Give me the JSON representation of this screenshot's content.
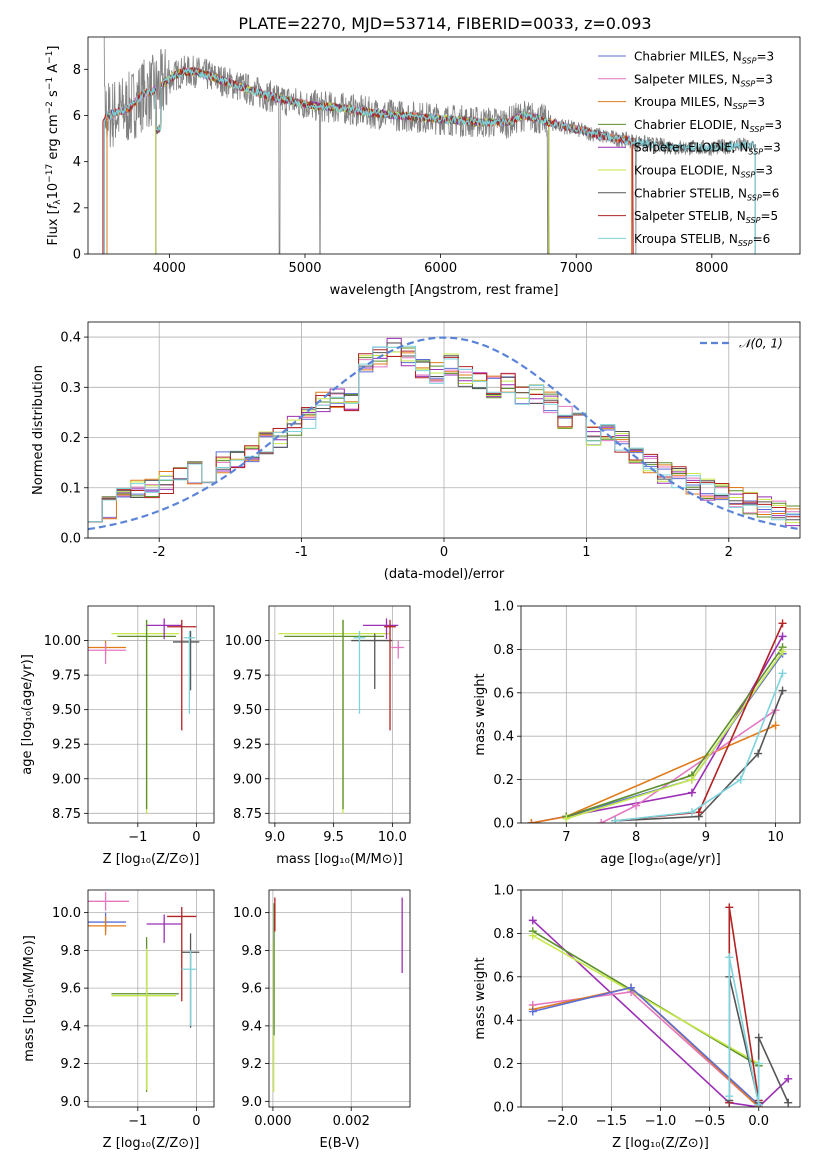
{
  "figure": {
    "title": "PLATE=2270, MJD=53714, FIBERID=0033, z=0.093"
  },
  "colors": {
    "chabrier_miles": "#5b6fd6",
    "salpeter_miles": "#e377c2",
    "kroupa_miles": "#e07b1a",
    "chabrier_elodie": "#5a8f2a",
    "salpeter_elodie": "#9b2fb5",
    "kroupa_elodie": "#c6e84a",
    "chabrier_stelib": "#555555",
    "salpeter_stelib": "#b22222",
    "kroupa_stelib": "#7fd3dc",
    "data": "#808080",
    "normal_curve": "#5b84d8",
    "grid": "#b0b0b0"
  },
  "chart_data": [
    {
      "id": "spectrum",
      "type": "line",
      "xlabel": "wavelength [Angstrom, rest frame]",
      "xlim": [
        3400,
        8650
      ],
      "ylim": [
        0,
        9.4
      ],
      "xticks": [
        4000,
        5000,
        6000,
        7000,
        8000
      ],
      "yticks": [
        0,
        2,
        4,
        6,
        8
      ],
      "grid": false,
      "legend_position": "top-right",
      "legend": [
        {
          "text": "Chabrier MILES, N",
          "sub": "SSP",
          "suffix": "=3",
          "color_key": "chabrier_miles"
        },
        {
          "text": "Salpeter MILES, N",
          "sub": "SSP",
          "suffix": "=3",
          "color_key": "salpeter_miles"
        },
        {
          "text": "Kroupa MILES, N",
          "sub": "SSP",
          "suffix": "=3",
          "color_key": "kroupa_miles"
        },
        {
          "text": "Chabrier ELODIE, N",
          "sub": "SSP",
          "suffix": "=3",
          "color_key": "chabrier_elodie"
        },
        {
          "text": "Salpeter ELODIE, N",
          "sub": "SSP",
          "suffix": "=3",
          "color_key": "salpeter_elodie"
        },
        {
          "text": "Kroupa ELODIE, N",
          "sub": "SSP",
          "suffix": "=3",
          "color_key": "kroupa_elodie"
        },
        {
          "text": "Chabrier STELIB, N",
          "sub": "SSP",
          "suffix": "=6",
          "color_key": "chabrier_stelib"
        },
        {
          "text": "Salpeter STELIB, N",
          "sub": "SSP",
          "suffix": "=5",
          "color_key": "salpeter_stelib"
        },
        {
          "text": "Kroupa STELIB, N",
          "sub": "SSP",
          "suffix": "=6",
          "color_key": "kroupa_stelib"
        }
      ],
      "continuum": {
        "x": [
          3500,
          3600,
          3700,
          3800,
          3900,
          4000,
          4100,
          4200,
          4300,
          4500,
          4700,
          4900,
          5100,
          5300,
          5500,
          5700,
          5900,
          6100,
          6300,
          6500,
          6600,
          6700,
          6800,
          7000,
          7200,
          7400,
          7600,
          7800,
          8000,
          8200
        ],
        "y": [
          5.9,
          6.1,
          6.3,
          6.9,
          7.1,
          7.6,
          7.9,
          7.9,
          7.7,
          7.3,
          6.9,
          6.6,
          6.4,
          6.3,
          6.1,
          6.0,
          5.9,
          5.8,
          5.7,
          5.7,
          6.0,
          5.9,
          5.7,
          5.4,
          5.1,
          4.9,
          4.7,
          4.6,
          4.6,
          4.7
        ]
      }
    },
    {
      "id": "residuals",
      "type": "line",
      "xlabel": "(data-model)/error",
      "ylabel": "Normed distribution",
      "xlim": [
        -2.5,
        2.5
      ],
      "ylim": [
        0,
        0.43
      ],
      "xticks": [
        -2,
        -1,
        0,
        1,
        2
      ],
      "yticks": [
        0.0,
        0.1,
        0.2,
        0.3,
        0.4
      ],
      "grid": true,
      "legend_position": "top-right",
      "legend": [
        {
          "text": "𝒩(0, 1)",
          "color_key": "normal_curve"
        }
      ],
      "normal": {
        "mean": 0,
        "std": 1
      },
      "histogram_bins": [
        -2.5,
        -2.4,
        -2.3,
        -2.2,
        -2.1,
        -2.0,
        -1.9,
        -1.8,
        -1.7,
        -1.6,
        -1.5,
        -1.4,
        -1.3,
        -1.2,
        -1.1,
        -1.0,
        -0.9,
        -0.8,
        -0.7,
        -0.6,
        -0.5,
        -0.4,
        -0.3,
        -0.2,
        -0.1,
        0.0,
        0.1,
        0.2,
        0.3,
        0.4,
        0.5,
        0.6,
        0.7,
        0.8,
        0.9,
        1.0,
        1.1,
        1.2,
        1.3,
        1.4,
        1.5,
        1.6,
        1.7,
        1.8,
        1.9,
        2.0,
        2.1,
        2.2,
        2.3,
        2.4,
        2.5
      ],
      "histogram_values": [
        0.055,
        0.06,
        0.085,
        0.1,
        0.095,
        0.11,
        0.12,
        0.13,
        0.13,
        0.15,
        0.155,
        0.17,
        0.19,
        0.2,
        0.22,
        0.24,
        0.27,
        0.28,
        0.27,
        0.35,
        0.36,
        0.38,
        0.36,
        0.34,
        0.33,
        0.345,
        0.32,
        0.31,
        0.3,
        0.31,
        0.28,
        0.29,
        0.27,
        0.24,
        0.23,
        0.2,
        0.21,
        0.19,
        0.16,
        0.15,
        0.13,
        0.12,
        0.11,
        0.095,
        0.09,
        0.08,
        0.07,
        0.06,
        0.055,
        0.045
      ]
    },
    {
      "id": "age_vs_Z",
      "type": "scatter",
      "xlabel": "Z [log₁₀(Z/Z⊙)]",
      "ylabel": "age  [log₁₀(age/yr)]",
      "xlim": [
        -1.85,
        0.3
      ],
      "ylim": [
        8.68,
        10.25
      ],
      "xticks": [
        -1,
        0
      ],
      "xticklabels": [
        "−1",
        "0"
      ],
      "yticks": [
        8.75,
        9.0,
        9.25,
        9.5,
        9.75,
        10.0
      ],
      "yticklabels": [
        "8.75",
        "9.00",
        "9.25",
        "9.50",
        "9.75",
        "10.00"
      ],
      "grid": true,
      "points": [
        {
          "x": -1.55,
          "y": 9.95,
          "xerr": [
            0.35,
            0.35
          ],
          "yerr": [
            0.05,
            0.05
          ],
          "color_key": "kroupa_miles"
        },
        {
          "x": -1.55,
          "y": 9.93,
          "xerr": [
            0.3,
            0.35
          ],
          "yerr": [
            0.1,
            0.05
          ],
          "color_key": "salpeter_miles"
        },
        {
          "x": -0.85,
          "y": 10.05,
          "xerr": [
            0.6,
            0.55
          ],
          "yerr": [
            1.3,
            0.1
          ],
          "color_key": "kroupa_elodie"
        },
        {
          "x": -0.85,
          "y": 10.03,
          "xerr": [
            0.5,
            0.5
          ],
          "yerr": [
            1.25,
            0.12
          ],
          "color_key": "chabrier_elodie"
        },
        {
          "x": -0.55,
          "y": 10.11,
          "xerr": [
            0.3,
            0.3
          ],
          "yerr": [
            0.1,
            0.05
          ],
          "color_key": "salpeter_elodie"
        },
        {
          "x": -0.25,
          "y": 10.1,
          "xerr": [
            0.25,
            0.25
          ],
          "yerr": [
            0.75,
            0.05
          ],
          "color_key": "salpeter_stelib"
        },
        {
          "x": -0.1,
          "y": 9.99,
          "xerr": [
            0.3,
            0.15
          ],
          "yerr": [
            0.35,
            0.08
          ],
          "color_key": "chabrier_stelib"
        },
        {
          "x": -0.12,
          "y": 10.02,
          "xerr": [
            0.1,
            0.1
          ],
          "yerr": [
            0.55,
            0.05
          ],
          "color_key": "kroupa_stelib"
        }
      ]
    },
    {
      "id": "age_vs_mass",
      "type": "scatter",
      "xlabel": "mass [log₁₀(M/M⊙)]",
      "xlim": [
        8.95,
        10.15
      ],
      "ylim": [
        8.68,
        10.25
      ],
      "xticks": [
        9.0,
        9.5,
        10.0
      ],
      "xticklabels": [
        "9.0",
        "9.5",
        "10.0"
      ],
      "yticks": [
        8.75,
        9.0,
        9.25,
        9.5,
        9.75,
        10.0
      ],
      "yticklabels": [
        "8.75",
        "9.00",
        "9.25",
        "9.50",
        "9.75",
        "10.00"
      ],
      "grid": true,
      "points": [
        {
          "x": 9.58,
          "y": 10.05,
          "xerr": [
            0.55,
            0.4
          ],
          "yerr": [
            1.3,
            0.1
          ],
          "color_key": "kroupa_elodie"
        },
        {
          "x": 9.58,
          "y": 10.03,
          "xerr": [
            0.5,
            0.35
          ],
          "yerr": [
            1.25,
            0.12
          ],
          "color_key": "chabrier_elodie"
        },
        {
          "x": 9.85,
          "y": 10.0,
          "xerr": [
            0.2,
            0.15
          ],
          "yerr": [
            0.35,
            0.05
          ],
          "color_key": "chabrier_stelib"
        },
        {
          "x": 9.95,
          "y": 10.11,
          "xerr": [
            0.2,
            0.1
          ],
          "yerr": [
            0.1,
            0.05
          ],
          "color_key": "salpeter_elodie"
        },
        {
          "x": 9.98,
          "y": 10.1,
          "xerr": [
            0.05,
            0.05
          ],
          "yerr": [
            0.75,
            0.05
          ],
          "color_key": "salpeter_stelib"
        },
        {
          "x": 9.72,
          "y": 10.02,
          "xerr": [
            0.05,
            0.05
          ],
          "yerr": [
            0.55,
            0.05
          ],
          "color_key": "kroupa_stelib"
        },
        {
          "x": 10.05,
          "y": 9.95,
          "xerr": [
            0.06,
            0.05
          ],
          "yerr": [
            0.08,
            0.05
          ],
          "color_key": "salpeter_miles"
        }
      ]
    },
    {
      "id": "weight_vs_age",
      "type": "line",
      "xlabel": "age  [log₁₀(age/yr)]",
      "ylabel": "mass weight",
      "xlim": [
        6.35,
        10.35
      ],
      "ylim": [
        0,
        1.0
      ],
      "xticks": [
        7,
        8,
        9,
        10
      ],
      "yticks": [
        0.0,
        0.2,
        0.4,
        0.6,
        0.8,
        1.0
      ],
      "grid": true,
      "series": [
        {
          "color_key": "salpeter_elodie",
          "x": [
            6.5,
            8.8,
            10.1
          ],
          "y": [
            0.0,
            0.14,
            0.86
          ]
        },
        {
          "color_key": "kroupa_miles",
          "x": [
            6.5,
            7.0,
            10.0
          ],
          "y": [
            0.0,
            0.03,
            0.45
          ]
        },
        {
          "color_key": "salpeter_miles",
          "x": [
            7.5,
            8.0,
            10.0
          ],
          "y": [
            0.0,
            0.08,
            0.52
          ]
        },
        {
          "color_key": "chabrier_miles",
          "x": [
            7.0,
            8.8,
            10.1
          ],
          "y": [
            0.03,
            0.2,
            0.78
          ]
        },
        {
          "color_key": "chabrier_elodie",
          "x": [
            7.0,
            8.8,
            10.1
          ],
          "y": [
            0.03,
            0.22,
            0.81
          ]
        },
        {
          "color_key": "kroupa_elodie",
          "x": [
            7.0,
            8.8,
            10.1
          ],
          "y": [
            0.02,
            0.2,
            0.79
          ]
        },
        {
          "color_key": "chabrier_stelib",
          "x": [
            7.7,
            8.9,
            9.75,
            10.1
          ],
          "y": [
            0.01,
            0.03,
            0.32,
            0.61
          ]
        },
        {
          "color_key": "salpeter_stelib",
          "x": [
            7.7,
            8.9,
            10.1
          ],
          "y": [
            0.01,
            0.05,
            0.92
          ]
        },
        {
          "color_key": "kroupa_stelib",
          "x": [
            7.7,
            8.8,
            9.5,
            10.1
          ],
          "y": [
            0.01,
            0.05,
            0.2,
            0.69
          ]
        }
      ]
    },
    {
      "id": "mass_vs_Z",
      "type": "scatter",
      "xlabel": "Z [log₁₀(Z/Z⊙)]",
      "ylabel": "mass [log₁₀(M/M⊙)]",
      "xlim": [
        -1.85,
        0.3
      ],
      "ylim": [
        8.97,
        10.12
      ],
      "xticks": [
        -1,
        0
      ],
      "xticklabels": [
        "−1",
        "0"
      ],
      "yticks": [
        9.0,
        9.2,
        9.4,
        9.6,
        9.8,
        10.0
      ],
      "yticklabels": [
        "9.0",
        "9.2",
        "9.4",
        "9.6",
        "9.8",
        "10.0"
      ],
      "grid": true,
      "points": [
        {
          "x": -1.55,
          "y": 10.06,
          "xerr": [
            0.35,
            0.4
          ],
          "yerr": [
            0.05,
            0.05
          ],
          "color_key": "salpeter_miles"
        },
        {
          "x": -1.55,
          "y": 9.95,
          "xerr": [
            0.3,
            0.35
          ],
          "yerr": [
            0.05,
            0.05
          ],
          "color_key": "chabrier_miles"
        },
        {
          "x": -1.55,
          "y": 9.93,
          "xerr": [
            0.3,
            0.35
          ],
          "yerr": [
            0.05,
            0.05
          ],
          "color_key": "kroupa_miles"
        },
        {
          "x": -0.85,
          "y": 9.57,
          "xerr": [
            0.6,
            0.55
          ],
          "yerr": [
            0.52,
            0.3
          ],
          "color_key": "chabrier_elodie"
        },
        {
          "x": -0.85,
          "y": 9.56,
          "xerr": [
            0.6,
            0.5
          ],
          "yerr": [
            0.5,
            0.25
          ],
          "color_key": "kroupa_elodie"
        },
        {
          "x": -0.55,
          "y": 9.94,
          "xerr": [
            0.3,
            0.3
          ],
          "yerr": [
            0.1,
            0.05
          ],
          "color_key": "salpeter_elodie"
        },
        {
          "x": -0.25,
          "y": 9.98,
          "xerr": [
            0.25,
            0.25
          ],
          "yerr": [
            0.45,
            0.05
          ],
          "color_key": "salpeter_stelib"
        },
        {
          "x": -0.1,
          "y": 9.79,
          "xerr": [
            0.15,
            0.15
          ],
          "yerr": [
            0.4,
            0.1
          ],
          "color_key": "chabrier_stelib"
        },
        {
          "x": -0.1,
          "y": 9.7,
          "xerr": [
            0.15,
            0.1
          ],
          "yerr": [
            0.3,
            0.1
          ],
          "color_key": "kroupa_stelib"
        }
      ]
    },
    {
      "id": "mass_vs_ebv",
      "type": "scatter",
      "xlabel": "E(B-V)",
      "xlim": [
        -0.0001,
        0.0035
      ],
      "ylim": [
        8.97,
        10.12
      ],
      "xticks": [
        0.0,
        0.002
      ],
      "xticklabels": [
        "0.000",
        "0.002"
      ],
      "yticks": [
        9.0,
        9.2,
        9.4,
        9.6,
        9.8,
        10.0
      ],
      "yticklabels": [
        "9.0",
        "9.2",
        "9.4",
        "9.6",
        "9.8",
        "10.0"
      ],
      "grid": true,
      "points": [
        {
          "x": 2e-05,
          "y": 9.55,
          "xerr": [
            0,
            0
          ],
          "yerr": [
            0.5,
            0.3
          ],
          "color_key": "kroupa_elodie"
        },
        {
          "x": 3e-05,
          "y": 9.7,
          "xerr": [
            0,
            0
          ],
          "yerr": [
            0.35,
            0.35
          ],
          "color_key": "chabrier_elodie"
        },
        {
          "x": 5e-05,
          "y": 9.98,
          "xerr": [
            0,
            0
          ],
          "yerr": [
            0.08,
            0.1
          ],
          "color_key": "salpeter_stelib"
        },
        {
          "x": 0.0033,
          "y": 9.88,
          "xerr": [
            0,
            0
          ],
          "yerr": [
            0.2,
            0.2
          ],
          "color_key": "salpeter_elodie"
        }
      ]
    },
    {
      "id": "weight_vs_Z",
      "type": "line",
      "xlabel": "Z [log₁₀(Z/Z⊙)]",
      "ylabel": "mass weight",
      "xlim": [
        -2.42,
        0.42
      ],
      "ylim": [
        0,
        1.0
      ],
      "xticks": [
        -2.0,
        -1.5,
        -1.0,
        -0.5,
        0.0
      ],
      "xticklabels": [
        "−2.0",
        "−1.5",
        "−1.0",
        "−0.5",
        "0.0"
      ],
      "yticks": [
        0.0,
        0.2,
        0.4,
        0.6,
        0.8,
        1.0
      ],
      "grid": true,
      "series": [
        {
          "color_key": "salpeter_elodie",
          "x": [
            -2.3,
            -0.3,
            0.0,
            0.3
          ],
          "y": [
            0.86,
            0.02,
            0.0,
            0.13
          ]
        },
        {
          "color_key": "chabrier_elodie",
          "x": [
            -2.3,
            0.0
          ],
          "y": [
            0.81,
            0.19
          ]
        },
        {
          "color_key": "kroupa_elodie",
          "x": [
            -2.3,
            0.0
          ],
          "y": [
            0.79,
            0.2
          ]
        },
        {
          "color_key": "salpeter_miles",
          "x": [
            -2.3,
            -1.3,
            0.0
          ],
          "y": [
            0.47,
            0.53,
            0.0
          ]
        },
        {
          "color_key": "kroupa_miles",
          "x": [
            -2.3,
            -1.3,
            0.0
          ],
          "y": [
            0.45,
            0.55,
            0.0
          ]
        },
        {
          "color_key": "chabrier_miles",
          "x": [
            -2.3,
            -1.3,
            0.0
          ],
          "y": [
            0.44,
            0.55,
            0.01
          ]
        },
        {
          "color_key": "salpeter_stelib",
          "x": [
            -0.3,
            -0.3,
            0.0
          ],
          "y": [
            0.02,
            0.92,
            0.03
          ]
        },
        {
          "color_key": "chabrier_stelib",
          "x": [
            -0.3,
            -0.3,
            0.0,
            0.0,
            0.3
          ],
          "y": [
            0.03,
            0.6,
            0.02,
            0.32,
            0.02
          ]
        },
        {
          "color_key": "kroupa_stelib",
          "x": [
            -0.3,
            -0.3,
            0.0,
            0.0
          ],
          "y": [
            0.05,
            0.69,
            0.01,
            0.2
          ]
        }
      ]
    }
  ]
}
